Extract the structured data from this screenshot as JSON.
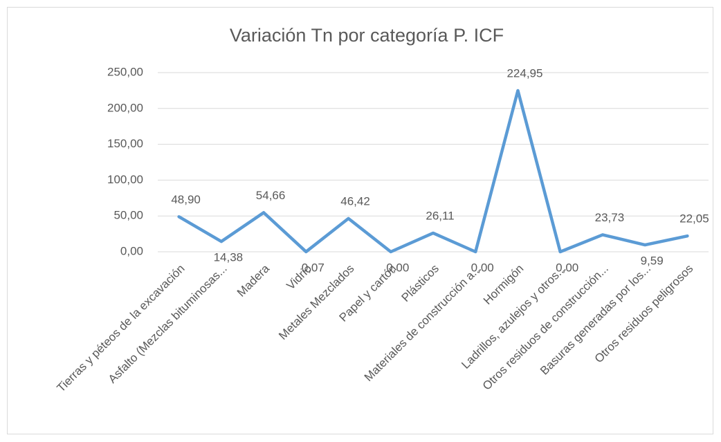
{
  "chart_data": {
    "type": "line",
    "title": "Variación Tn por categoría P. ICF",
    "categories": [
      "Tierras y péteos de la excavación",
      "Asfalto (Mezclas bituminosas...",
      "Madera",
      "Vidrio",
      "Metales Mezclados",
      "Papel y cartón",
      "Plásticos",
      "Materiales de construcción a...",
      "Hormigón",
      "Ladrillos, azulejos y otros...",
      "Otros residuos de construcción...",
      "Basuras generadas por los...",
      "Otros residuos peligrosos"
    ],
    "series": [
      {
        "name": "Variación Tn",
        "color": "#5b9bd5",
        "values": [
          48.9,
          14.38,
          54.66,
          0.07,
          46.42,
          0.0,
          26.11,
          0.0,
          224.95,
          0.0,
          23.73,
          9.59,
          22.05
        ],
        "value_labels": [
          "48,90",
          "14,38",
          "54,66",
          "0,07",
          "46,42",
          "0,00",
          "26,11",
          "0,00",
          "224,95",
          "0,00",
          "23,73",
          "9,59",
          "22,05"
        ]
      }
    ],
    "ylim": [
      0,
      250
    ],
    "yticks": [
      {
        "value": 0,
        "label": "0,00"
      },
      {
        "value": 50,
        "label": "50,00"
      },
      {
        "value": 100,
        "label": "100,00"
      },
      {
        "value": 150,
        "label": "150,00"
      },
      {
        "value": 200,
        "label": "200,00"
      },
      {
        "value": 250,
        "label": "250,00"
      }
    ],
    "grid": true
  }
}
